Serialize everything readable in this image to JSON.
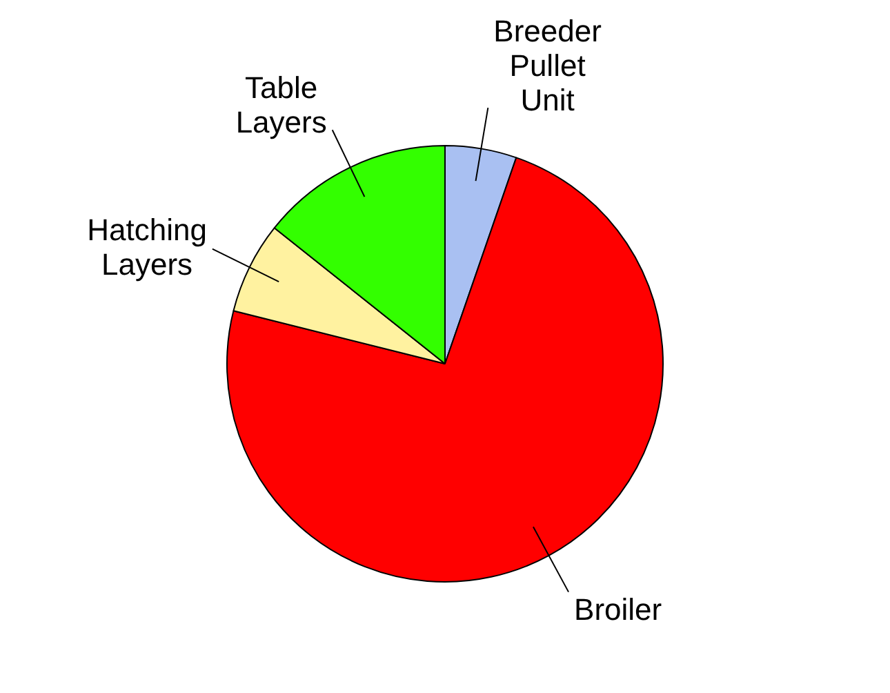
{
  "chart_data": {
    "type": "pie",
    "categories": [
      "Breeder Pullet Unit",
      "Broiler",
      "Hatching Layers",
      "Table Layers"
    ],
    "values": [
      5.3,
      73.6,
      6.8,
      14.3
    ],
    "colors": [
      "#a9c0f2",
      "#ff0000",
      "#fff2a0",
      "#33ff00"
    ],
    "legend": false
  }
}
